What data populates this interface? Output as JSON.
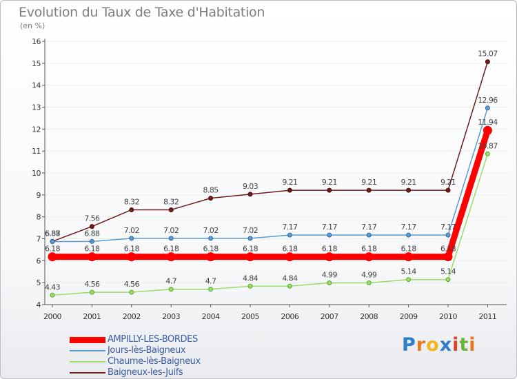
{
  "chart_data": {
    "type": "line",
    "title": "Evolution du Taux de Taxe d'Habitation",
    "subtitle": "(en %)",
    "xlabel": "",
    "ylabel": "",
    "ylim": [
      4,
      16
    ],
    "y_ticks": [
      4,
      5,
      6,
      7,
      8,
      9,
      10,
      11,
      12,
      13,
      14,
      15,
      16
    ],
    "grid": "horizontal-dotted",
    "categories": [
      "2000",
      "2001",
      "2002",
      "2003",
      "2004",
      "2005",
      "2006",
      "2007",
      "2008",
      "2009",
      "2010",
      "2011"
    ],
    "series": [
      {
        "name": "Baigneux-les-Juifs",
        "color": "#6e1a1a",
        "values": [
          6.88,
          7.56,
          8.32,
          8.32,
          8.85,
          9.03,
          9.21,
          9.21,
          9.21,
          9.21,
          9.21,
          15.07
        ],
        "labels": [
          "6.88",
          "7.56",
          "8.32",
          "8.32",
          "8.85",
          "9.03",
          "9.21",
          "9.21",
          "9.21",
          "9.21",
          "9.21",
          "15.07"
        ]
      },
      {
        "name": "Jours-lès-Baigneux",
        "color": "#5b9bd0",
        "values": [
          6.87,
          6.88,
          7.02,
          7.02,
          7.02,
          7.02,
          7.17,
          7.17,
          7.17,
          7.17,
          7.17,
          12.96
        ],
        "labels": [
          "6.87",
          "6.88",
          "7.02",
          "7.02",
          "7.02",
          "7.02",
          "7.17",
          "7.17",
          "7.17",
          "7.17",
          "7.17",
          "12.96"
        ]
      },
      {
        "name": "Chaume-lès-Baigneux",
        "color": "#99dd66",
        "values": [
          4.43,
          4.56,
          4.56,
          4.7,
          4.7,
          4.84,
          4.84,
          4.99,
          4.99,
          5.14,
          5.14,
          10.87
        ],
        "labels": [
          "4.43",
          "4.56",
          "4.56",
          "4.7",
          "4.7",
          "4.84",
          "4.84",
          "4.99",
          "4.99",
          "5.14",
          "5.14",
          "10.87"
        ]
      },
      {
        "name": "AMPILLY-LES-BORDES",
        "color": "#ff0000",
        "values": [
          6.18,
          6.18,
          6.18,
          6.18,
          6.18,
          6.18,
          6.18,
          6.18,
          6.18,
          6.18,
          6.18,
          11.94
        ],
        "labels": [
          "6.18",
          "6.18",
          "6.18",
          "6.18",
          "6.18",
          "6.18",
          "6.18",
          "6.18",
          "6.18",
          "6.18",
          "6.18",
          "11.94"
        ]
      }
    ],
    "legend": [
      {
        "name": "AMPILLY-LES-BORDES",
        "color": "#ff0000"
      },
      {
        "name": "Jours-lès-Baigneux",
        "color": "#5b9bd0"
      },
      {
        "name": "Chaume-lès-Baigneux",
        "color": "#99dd66"
      },
      {
        "name": "Baigneux-les-Juifs",
        "color": "#6e1a1a"
      }
    ]
  },
  "logo": {
    "letters": [
      "P",
      "r",
      "o",
      "x",
      "i",
      "t",
      "i"
    ],
    "colors": [
      "#2e7fc7",
      "#e37a22",
      "#f2b51b",
      "#2e7fc7",
      "#d9412b",
      "#6cb33f",
      "#e37a22"
    ]
  }
}
